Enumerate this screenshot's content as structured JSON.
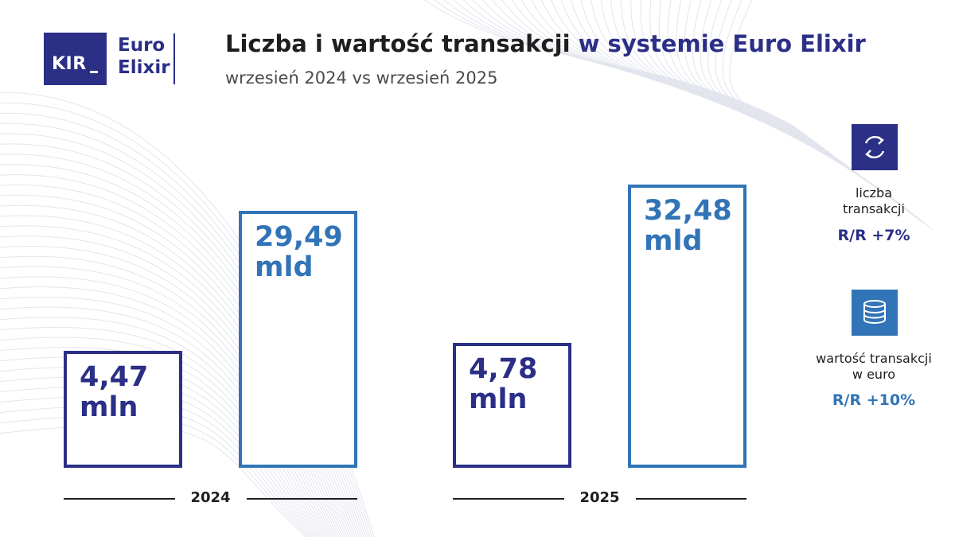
{
  "header": {
    "logo_kir": "KIR",
    "logo_euro": "Euro",
    "logo_elixir": "Elixir",
    "title_main": "Liczba i wartość transakcji",
    "title_accent": "w systemie Euro Elixir",
    "subtitle": "wrzesień 2024 vs wrzesień 2025"
  },
  "colors": {
    "count": "#2b2f86",
    "value": "#3174b7",
    "axis": "#1e1e1e"
  },
  "chart_data": {
    "type": "bar",
    "title": "Liczba i wartość transakcji w systemie Euro Elixir",
    "subtitle": "wrzesień 2024 vs wrzesień 2025",
    "categories": [
      "2024",
      "2025"
    ],
    "series": [
      {
        "name": "liczba transakcji",
        "unit": "mln",
        "values": [
          4.47,
          4.78
        ],
        "labels": [
          "4,47",
          "4,78"
        ]
      },
      {
        "name": "wartość transakcji w euro",
        "unit": "mld",
        "values": [
          29.49,
          32.48
        ],
        "labels": [
          "29,49",
          "32,48"
        ]
      }
    ],
    "xlabel": "",
    "ylabel": "",
    "grid": false,
    "legend_position": "right"
  },
  "legend": [
    {
      "icon": "refresh-icon",
      "label_line1": "liczba",
      "label_line2": "transakcji",
      "growth": "R/R +7%"
    },
    {
      "icon": "coins-icon",
      "label_line1": "wartość transakcji",
      "label_line2": "w euro",
      "growth": "R/R +10%"
    }
  ]
}
